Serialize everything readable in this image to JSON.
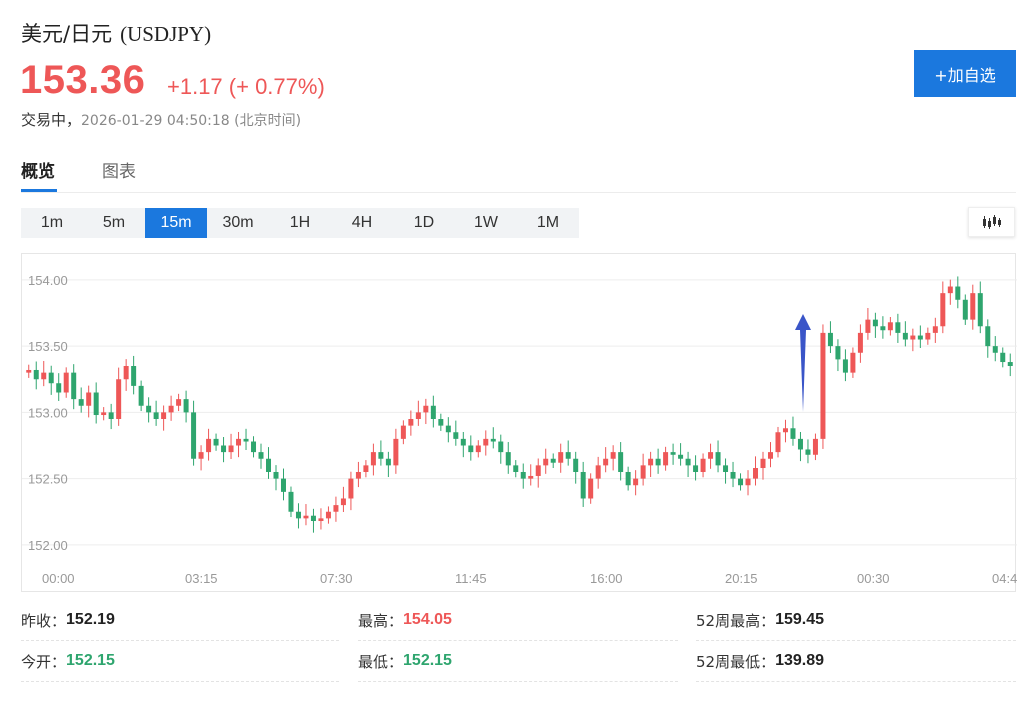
{
  "header": {
    "name": "美元/日元",
    "code": "(USDJPY)",
    "price": "153.36",
    "change": "+1.17 (+ 0.77%)",
    "status": "交易中，",
    "timestamp": "2026-01-29 04:50:18 (北京时间)",
    "add_button": "+加自选"
  },
  "tabs": [
    {
      "label": "概览",
      "active": true
    },
    {
      "label": "图表",
      "active": false
    }
  ],
  "periods": [
    {
      "label": "1m",
      "active": false
    },
    {
      "label": "5m",
      "active": false
    },
    {
      "label": "15m",
      "active": true
    },
    {
      "label": "30m",
      "active": false
    },
    {
      "label": "1H",
      "active": false
    },
    {
      "label": "4H",
      "active": false
    },
    {
      "label": "1D",
      "active": false
    },
    {
      "label": "1W",
      "active": false
    },
    {
      "label": "1M",
      "active": false
    }
  ],
  "chart_type_icon": "candlestick-icon",
  "colors": {
    "up": "#ee5757",
    "down": "#2ea56e",
    "accent": "#1b78de",
    "arrow": "#3a55c8"
  },
  "chart_data": {
    "type": "candlestick",
    "ylim": [
      151.78,
      154.12
    ],
    "y_ticks": [
      "154.00",
      "153.50",
      "153.00",
      "152.50",
      "152.00"
    ],
    "x_ticks": [
      "00:00",
      "03:15",
      "07:30",
      "11:45",
      "16:00",
      "20:15",
      "00:30",
      "04:4"
    ],
    "grid": true,
    "annotation": "arrow-up",
    "closes": [
      153.32,
      153.25,
      153.3,
      153.22,
      153.15,
      153.3,
      153.1,
      153.05,
      153.15,
      152.98,
      153.0,
      152.95,
      153.25,
      153.35,
      153.2,
      153.05,
      153.0,
      152.95,
      153.0,
      153.05,
      153.1,
      153.0,
      152.65,
      152.7,
      152.8,
      152.75,
      152.7,
      152.75,
      152.8,
      152.78,
      152.7,
      152.65,
      152.55,
      152.5,
      152.4,
      152.25,
      152.2,
      152.22,
      152.18,
      152.2,
      152.25,
      152.3,
      152.35,
      152.5,
      152.55,
      152.6,
      152.7,
      152.65,
      152.6,
      152.8,
      152.9,
      152.95,
      153.0,
      153.05,
      152.95,
      152.9,
      152.85,
      152.8,
      152.75,
      152.7,
      152.75,
      152.8,
      152.78,
      152.7,
      152.6,
      152.55,
      152.5,
      152.52,
      152.6,
      152.65,
      152.62,
      152.7,
      152.65,
      152.55,
      152.35,
      152.5,
      152.6,
      152.65,
      152.7,
      152.55,
      152.45,
      152.5,
      152.6,
      152.65,
      152.6,
      152.7,
      152.68,
      152.65,
      152.6,
      152.55,
      152.65,
      152.7,
      152.6,
      152.55,
      152.5,
      152.45,
      152.5,
      152.58,
      152.65,
      152.7,
      152.85,
      152.88,
      152.8,
      152.72,
      152.68,
      152.8,
      153.6,
      153.5,
      153.4,
      153.3,
      153.45,
      153.6,
      153.7,
      153.65,
      153.62,
      153.68,
      153.6,
      153.55,
      153.58,
      153.55,
      153.6,
      153.65,
      153.9,
      153.95,
      153.85,
      153.7,
      153.9,
      153.65,
      153.5,
      153.45,
      153.38,
      153.35
    ]
  },
  "stats": [
    {
      "label": "昨收：",
      "value": "152.19",
      "tone": "neutral"
    },
    {
      "label": "最高：",
      "value": "154.05",
      "tone": "up"
    },
    {
      "label": "52周最高：",
      "value": "159.45",
      "tone": "neutral"
    },
    {
      "label": "今开：",
      "value": "152.15",
      "tone": "down"
    },
    {
      "label": "最低：",
      "value": "152.15",
      "tone": "down"
    },
    {
      "label": "52周最低：",
      "value": "139.89",
      "tone": "neutral"
    }
  ]
}
